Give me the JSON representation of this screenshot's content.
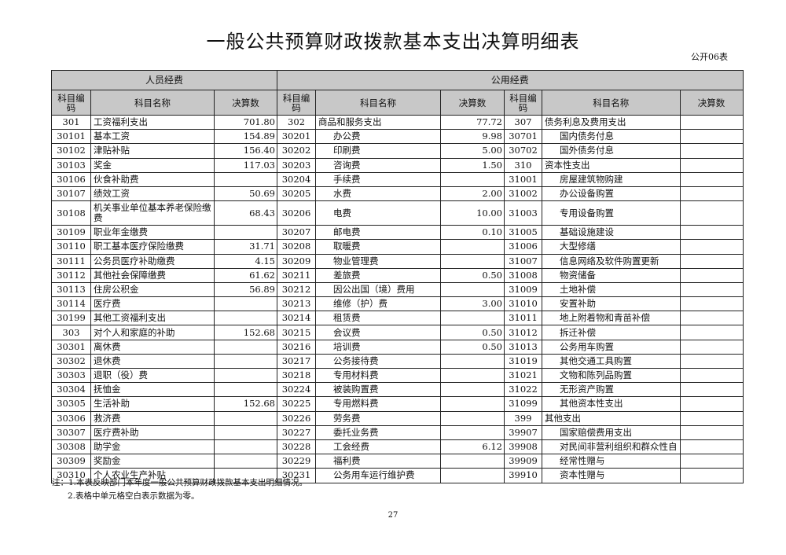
{
  "title": "一般公共预算财政拨款基本支出决算明细表",
  "table_no": "公开06表",
  "groups": [
    "人员经费",
    "公用经费"
  ],
  "headers": {
    "code": "科目编码",
    "name": "科目名称",
    "amount": "决算数"
  },
  "rows": [
    [
      [
        "301",
        "工资福利支出",
        "701.80"
      ],
      [
        "302",
        "商品和服务支出",
        "77.72"
      ],
      [
        "307",
        "债务利息及费用支出",
        ""
      ]
    ],
    [
      [
        "30101",
        "基本工资",
        "154.89"
      ],
      [
        "30201",
        "办公费",
        "9.98"
      ],
      [
        "30701",
        "国内债务付息",
        ""
      ]
    ],
    [
      [
        "30102",
        "津贴补贴",
        "156.40"
      ],
      [
        "30202",
        "印刷费",
        "5.00"
      ],
      [
        "30702",
        "国外债务付息",
        ""
      ]
    ],
    [
      [
        "30103",
        "奖金",
        "117.03"
      ],
      [
        "30203",
        "咨询费",
        "1.50"
      ],
      [
        "310",
        "资本性支出",
        ""
      ]
    ],
    [
      [
        "30106",
        "伙食补助费",
        ""
      ],
      [
        "30204",
        "手续费",
        ""
      ],
      [
        "31001",
        "房屋建筑物购建",
        ""
      ]
    ],
    [
      [
        "30107",
        "绩效工资",
        "50.69"
      ],
      [
        "30205",
        "水费",
        "2.00"
      ],
      [
        "31002",
        "办公设备购置",
        ""
      ]
    ],
    [
      [
        "30108",
        "机关事业单位基本养老保险缴费",
        "68.43"
      ],
      [
        "30206",
        "电费",
        "10.00"
      ],
      [
        "31003",
        "专用设备购置",
        ""
      ]
    ],
    [
      [
        "30109",
        "职业年金缴费",
        ""
      ],
      [
        "30207",
        "邮电费",
        "0.10"
      ],
      [
        "31005",
        "基础设施建设",
        ""
      ]
    ],
    [
      [
        "30110",
        "职工基本医疗保险缴费",
        "31.71"
      ],
      [
        "30208",
        "取暖费",
        ""
      ],
      [
        "31006",
        "大型修缮",
        ""
      ]
    ],
    [
      [
        "30111",
        "公务员医疗补助缴费",
        "4.15"
      ],
      [
        "30209",
        "物业管理费",
        ""
      ],
      [
        "31007",
        "信息网络及软件购置更新",
        ""
      ]
    ],
    [
      [
        "30112",
        "其他社会保障缴费",
        "61.62"
      ],
      [
        "30211",
        "差旅费",
        "0.50"
      ],
      [
        "31008",
        "物资储备",
        ""
      ]
    ],
    [
      [
        "30113",
        "住房公积金",
        "56.89"
      ],
      [
        "30212",
        "因公出国（境）费用",
        ""
      ],
      [
        "31009",
        "土地补偿",
        ""
      ]
    ],
    [
      [
        "30114",
        "医疗费",
        ""
      ],
      [
        "30213",
        "维修（护）费",
        "3.00"
      ],
      [
        "31010",
        "安置补助",
        ""
      ]
    ],
    [
      [
        "30199",
        "其他工资福利支出",
        ""
      ],
      [
        "30214",
        "租赁费",
        ""
      ],
      [
        "31011",
        "地上附着物和青苗补偿",
        ""
      ]
    ],
    [
      [
        "303",
        "对个人和家庭的补助",
        "152.68"
      ],
      [
        "30215",
        "会议费",
        "0.50"
      ],
      [
        "31012",
        "拆迁补偿",
        ""
      ]
    ],
    [
      [
        "30301",
        "离休费",
        ""
      ],
      [
        "30216",
        "培训费",
        "0.50"
      ],
      [
        "31013",
        "公务用车购置",
        ""
      ]
    ],
    [
      [
        "30302",
        "退休费",
        ""
      ],
      [
        "30217",
        "公务接待费",
        ""
      ],
      [
        "31019",
        "其他交通工具购置",
        ""
      ]
    ],
    [
      [
        "30303",
        "退职（役）费",
        ""
      ],
      [
        "30218",
        "专用材料费",
        ""
      ],
      [
        "31021",
        "文物和陈列品购置",
        ""
      ]
    ],
    [
      [
        "30304",
        "抚恤金",
        ""
      ],
      [
        "30224",
        "被装购置费",
        ""
      ],
      [
        "31022",
        "无形资产购置",
        ""
      ]
    ],
    [
      [
        "30305",
        "生活补助",
        "152.68"
      ],
      [
        "30225",
        "专用燃料费",
        ""
      ],
      [
        "31099",
        "其他资本性支出",
        ""
      ]
    ],
    [
      [
        "30306",
        "救济费",
        ""
      ],
      [
        "30226",
        "劳务费",
        ""
      ],
      [
        "399",
        "其他支出",
        ""
      ]
    ],
    [
      [
        "30307",
        "医疗费补助",
        ""
      ],
      [
        "30227",
        "委托业务费",
        ""
      ],
      [
        "39907",
        "国家赔偿费用支出",
        ""
      ]
    ],
    [
      [
        "30308",
        "助学金",
        ""
      ],
      [
        "30228",
        "工会经费",
        "6.12"
      ],
      [
        "39908",
        "对民间非营利组织和群众性自",
        ""
      ]
    ],
    [
      [
        "30309",
        "奖励金",
        ""
      ],
      [
        "30229",
        "福利费",
        ""
      ],
      [
        "39909",
        "经常性赠与",
        ""
      ]
    ],
    [
      [
        "30310",
        "个人农业生产补贴",
        ""
      ],
      [
        "30231",
        "公务用车运行维护费",
        ""
      ],
      [
        "39910",
        "资本性赠与",
        ""
      ]
    ]
  ],
  "notes": [
    "注：1.本表反映部门本年度一般公共预算财政拨款基本支出明细情况。",
    "2.表格中单元格空白表示数据为零。"
  ],
  "page_number": "27"
}
